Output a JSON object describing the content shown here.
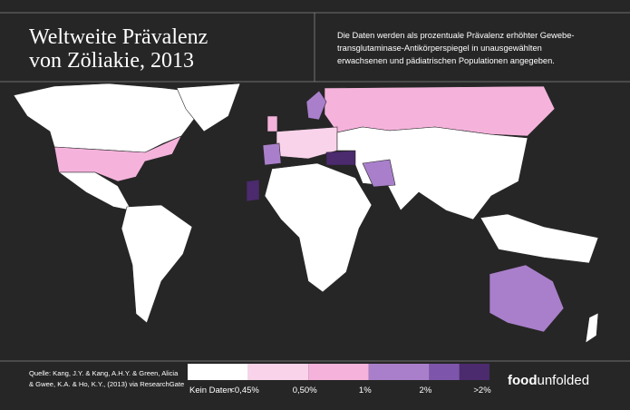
{
  "header": {
    "title": [
      "Weltweite Prävalenz",
      "von Zöliakie, 2013"
    ],
    "description": [
      "Die Daten werden als prozentuale Prävalenz erhöhter Gewebe-",
      "transglutaminase-Antikörperspiegel in unausgewählten",
      "erwachsenen und pädiatrischen Populationen angegeben."
    ]
  },
  "footer": {
    "source": [
      "Quelle: Kang, J.Y. & Kang, A.H.Y. & Green, Alicia",
      "& Gwee, K.A. & Ho, K.Y., (2013) via ResearchGate"
    ],
    "brand": {
      "bold": "food",
      "light": "unfolded"
    }
  },
  "legend": [
    {
      "label": "Kein Daten",
      "color": "#ffffff"
    },
    {
      "label": "<0,45%",
      "color": "#f9d3ea"
    },
    {
      "label": "0,50%",
      "color": "#f5b3dc"
    },
    {
      "label": "1%",
      "color": "#a97fcb"
    },
    {
      "label": "2%",
      "color": "#7d55aa"
    },
    {
      "label": ">2%",
      "color": "#4b2a6e"
    }
  ]
}
